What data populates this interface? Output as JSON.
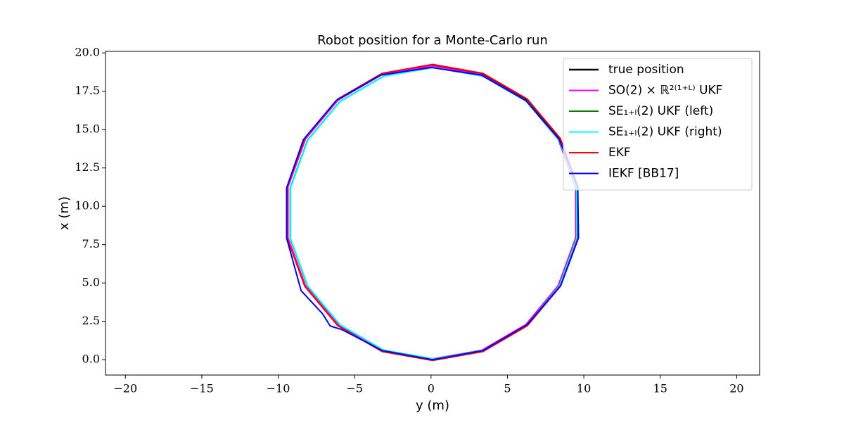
{
  "chart_data": {
    "type": "line",
    "title": "Robot position for a Monte-Carlo run",
    "xlabel": "y (m)",
    "ylabel": "x (m)",
    "xlim": [
      -21.3,
      21.5
    ],
    "xticks": [
      {
        "value": -20,
        "label": "−20"
      },
      {
        "value": -15,
        "label": "−15"
      },
      {
        "value": -10,
        "label": "−10"
      },
      {
        "value": -5,
        "label": "−5"
      },
      0,
      5,
      10,
      15,
      20
    ],
    "ylim": [
      -1.0,
      20.1
    ],
    "yticks": [
      {
        "value": 0,
        "label": "0.0"
      },
      2.5,
      {
        "value": 5,
        "label": "5.0"
      },
      7.5,
      {
        "value": 10,
        "label": "10.0"
      },
      12.5,
      {
        "value": 15,
        "label": "15.0"
      },
      17.5,
      {
        "value": 20,
        "label": "20.0"
      }
    ],
    "grid": false,
    "legend": "upper right",
    "series": [
      {
        "name": "true position",
        "color": "#000000",
        "x": [
          0.1,
          3.38,
          6.27,
          8.41,
          9.56,
          9.56,
          8.41,
          6.27,
          3.38,
          0.1,
          -3.18,
          -6.07,
          -8.21,
          -9.36,
          -9.36,
          -8.21,
          -6.07,
          -3.18,
          0.1
        ],
        "values": [
          0,
          0.58,
          2.25,
          4.8,
          7.93,
          11.27,
          14.4,
          16.95,
          18.62,
          19.2,
          18.62,
          16.95,
          14.4,
          11.27,
          7.93,
          4.8,
          2.25,
          0.58,
          0
        ]
      },
      {
        "name": "SO(2) × ℝ²⁽¹⁺ᴸ⁾ UKF",
        "color": "#ff00ff",
        "x": [
          0.05,
          3.32,
          6.19,
          8.32,
          9.46,
          9.46,
          8.32,
          6.19,
          3.32,
          0.05,
          -3.22,
          -6.09,
          -8.22,
          -9.36,
          -9.36,
          -8.22,
          -6.09,
          -3.22,
          0.05
        ],
        "values": [
          0.05,
          0.62,
          2.28,
          4.83,
          7.94,
          11.26,
          14.38,
          16.92,
          18.58,
          19.15,
          18.58,
          16.92,
          14.38,
          11.26,
          7.94,
          4.83,
          2.28,
          0.62,
          0.05
        ]
      },
      {
        "name": "SE₁₊ₗ(2) UKF (left)",
        "color": "#008000",
        "x": [
          0.15,
          3.4,
          6.26,
          8.38,
          9.51,
          9.51,
          8.38,
          6.26,
          3.4,
          0.15,
          -3.1,
          -5.96,
          -8.08,
          -9.21,
          -9.21,
          -8.08,
          -5.96,
          -3.1,
          0.15
        ],
        "values": [
          0.05,
          0.62,
          2.27,
          4.8,
          7.9,
          11.2,
          14.3,
          16.83,
          18.48,
          19.05,
          18.48,
          16.83,
          14.3,
          11.2,
          7.9,
          4.8,
          2.27,
          0.62,
          0.05
        ]
      },
      {
        "name": "SE₁₊ₗ(2) UKF (right)",
        "color": "#00ffff",
        "x": [
          0.17,
          3.42,
          6.28,
          8.4,
          9.53,
          9.53,
          8.4,
          6.28,
          3.42,
          0.17,
          -3.08,
          -5.94,
          -8.06,
          -9.19,
          -9.19,
          -8.06,
          -5.94,
          -3.08,
          0.17
        ],
        "values": [
          0.05,
          0.62,
          2.27,
          4.8,
          7.9,
          11.2,
          14.3,
          16.83,
          18.48,
          19.05,
          18.48,
          16.83,
          14.3,
          11.2,
          7.9,
          4.8,
          2.27,
          0.62,
          0.05
        ]
      },
      {
        "name": "EKF",
        "color": "#ff0000",
        "x": [
          0.1,
          3.4,
          6.3,
          8.46,
          9.61,
          9.61,
          8.46,
          6.3,
          3.4,
          0.1,
          -3.2,
          -6.1,
          -8.26,
          -9.41,
          -9.41,
          -8.26,
          -6.1,
          -3.2,
          0.1
        ],
        "values": [
          -0.05,
          0.53,
          2.21,
          4.78,
          7.92,
          11.28,
          14.43,
          16.99,
          18.67,
          19.25,
          18.67,
          16.99,
          14.43,
          11.28,
          7.92,
          4.78,
          2.21,
          0.53,
          -0.05
        ]
      },
      {
        "name": "IEKF [BB17]",
        "color": "#0000ff",
        "x": [
          0.1,
          3.4,
          6.3,
          8.5,
          9.65,
          9.6,
          8.4,
          6.2,
          3.3,
          0.0,
          -3.3,
          -6.2,
          -8.35,
          -9.45,
          -9.45,
          -8.5,
          -7.1,
          -6.6,
          -5.8,
          -3.2,
          0.1
        ],
        "values": [
          0,
          0.6,
          2.3,
          4.85,
          7.95,
          11.25,
          14.35,
          16.9,
          18.55,
          19.05,
          18.55,
          16.9,
          14.35,
          11.2,
          7.93,
          4.5,
          3.0,
          2.2,
          1.95,
          0.6,
          0
        ]
      }
    ]
  }
}
